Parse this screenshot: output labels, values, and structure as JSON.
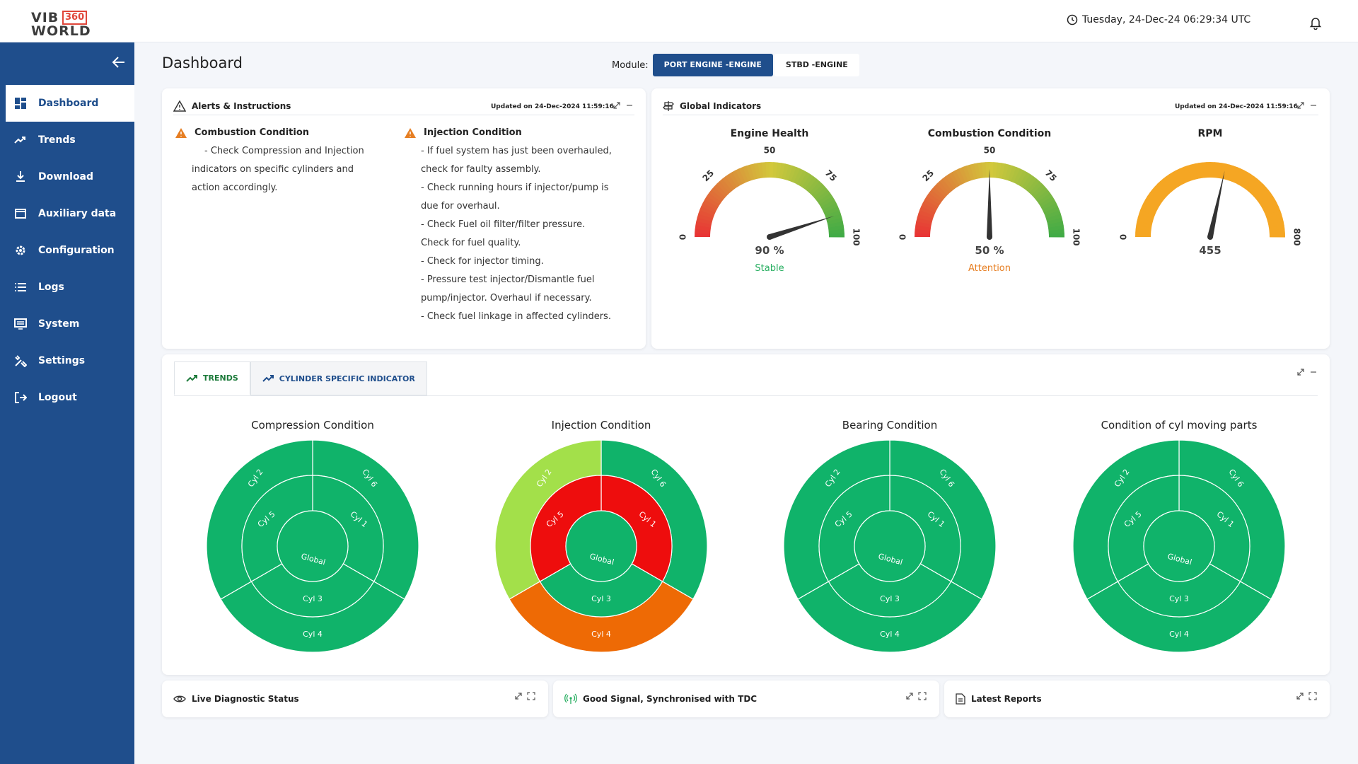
{
  "header": {
    "logo_top": "VIB",
    "logo_badge": "360",
    "logo_bottom": "WORLD",
    "datetime": "Tuesday, 24-Dec-24 06:29:34 UTC"
  },
  "sidebar": {
    "items": [
      {
        "label": "Dashboard",
        "icon": "dashboard-icon",
        "active": true
      },
      {
        "label": "Trends",
        "icon": "trend-icon"
      },
      {
        "label": "Download",
        "icon": "download-icon"
      },
      {
        "label": "Auxiliary data",
        "icon": "window-icon"
      },
      {
        "label": "Configuration",
        "icon": "gear-icon"
      },
      {
        "label": "Logs",
        "icon": "list-icon"
      },
      {
        "label": "System",
        "icon": "monitor-icon"
      },
      {
        "label": "Settings",
        "icon": "tools-icon"
      },
      {
        "label": "Logout",
        "icon": "logout-icon"
      }
    ]
  },
  "page": {
    "title": "Dashboard",
    "module_label": "Module:",
    "modules": [
      "PORT ENGINE -ENGINE",
      "STBD -ENGINE"
    ]
  },
  "alerts": {
    "title": "Alerts & Instructions",
    "updated": "Updated on 24-Dec-2024 11:59:16",
    "combustion": {
      "title": "Combustion Condition",
      "lines": [
        "-  Check Compression and Injection",
        "indicators on specific cylinders and",
        "action accordingly."
      ]
    },
    "injection": {
      "title": "Injection Condition",
      "lines": [
        "-  If fuel system has just been overhauled,",
        "check for faulty assembly.",
        "-  Check running hours if injector/pump is",
        "due for overhaul.",
        "-  Check Fuel oil filter/filter pressure.",
        "Check for fuel quality.",
        "-  Check for injector timing.",
        "-  Pressure test injector/Dismantle fuel",
        "pump/injector. Overhaul if necessary.",
        "-  Check fuel linkage in affected cylinders."
      ]
    }
  },
  "global": {
    "title": "Global Indicators",
    "updated": "Updated on 24-Dec-2024 11:59:16",
    "gauges": [
      {
        "title": "Engine Health",
        "value": 90,
        "display": "90 %",
        "status": "Stable",
        "status_color": "#27ae60",
        "max": 100,
        "ticks": [
          "0",
          "25",
          "50",
          "75",
          "100"
        ]
      },
      {
        "title": "Combustion Condition",
        "value": 50,
        "display": "50 %",
        "status": "Attention",
        "status_color": "#e67e22",
        "max": 100,
        "ticks": [
          "0",
          "25",
          "50",
          "75",
          "100"
        ]
      },
      {
        "title": "RPM",
        "value": 455,
        "display": "455",
        "status": "",
        "max": 800,
        "ticks": [
          "0",
          "800"
        ]
      }
    ]
  },
  "trends": {
    "tabs": [
      "TRENDS",
      "CYLINDER SPECIFIC INDICATOR"
    ],
    "charts": [
      {
        "title": "Compression Condition",
        "center": "Global",
        "inner": [
          {
            "label": "Cyl 1",
            "color": "#10b36a"
          },
          {
            "label": "Cyl 3",
            "color": "#10b36a"
          },
          {
            "label": "Cyl 5",
            "color": "#10b36a"
          }
        ],
        "outer": [
          {
            "label": "Cyl 6",
            "color": "#10b36a"
          },
          {
            "label": "Cyl 4",
            "color": "#10b36a"
          },
          {
            "label": "Cyl 2",
            "color": "#10b36a"
          }
        ]
      },
      {
        "title": "Injection Condition",
        "center": "Global",
        "inner": [
          {
            "label": "Cyl 1",
            "color": "#ee0d0d"
          },
          {
            "label": "Cyl 3",
            "color": "#10b36a"
          },
          {
            "label": "Cyl 5",
            "color": "#ee0d0d"
          }
        ],
        "outer": [
          {
            "label": "Cyl 6",
            "color": "#10b36a"
          },
          {
            "label": "Cyl 4",
            "color": "#ee6a05"
          },
          {
            "label": "Cyl 2",
            "color": "#a3e04a"
          }
        ]
      },
      {
        "title": "Bearing Condition",
        "center": "Global",
        "inner": [
          {
            "label": "Cyl 1",
            "color": "#10b36a"
          },
          {
            "label": "Cyl 3",
            "color": "#10b36a"
          },
          {
            "label": "Cyl 5",
            "color": "#10b36a"
          }
        ],
        "outer": [
          {
            "label": "Cyl 6",
            "color": "#10b36a"
          },
          {
            "label": "Cyl 4",
            "color": "#10b36a"
          },
          {
            "label": "Cyl 2",
            "color": "#10b36a"
          }
        ]
      },
      {
        "title": "Condition of cyl moving parts",
        "center": "Global",
        "inner": [
          {
            "label": "Cyl 1",
            "color": "#10b36a"
          },
          {
            "label": "Cyl 3",
            "color": "#10b36a"
          },
          {
            "label": "Cyl 5",
            "color": "#10b36a"
          }
        ],
        "outer": [
          {
            "label": "Cyl 6",
            "color": "#10b36a"
          },
          {
            "label": "Cyl 4",
            "color": "#10b36a"
          },
          {
            "label": "Cyl 2",
            "color": "#10b36a"
          }
        ]
      }
    ]
  },
  "bottom": {
    "diagnostic": "Live Diagnostic Status",
    "signal": "Good Signal, Synchronised with TDC",
    "reports": "Latest Reports"
  },
  "colors": {
    "brand": "#1f4e8c",
    "good": "#10b36a",
    "bad": "#ee0d0d",
    "warn": "#ee6a05",
    "light": "#a3e04a"
  }
}
